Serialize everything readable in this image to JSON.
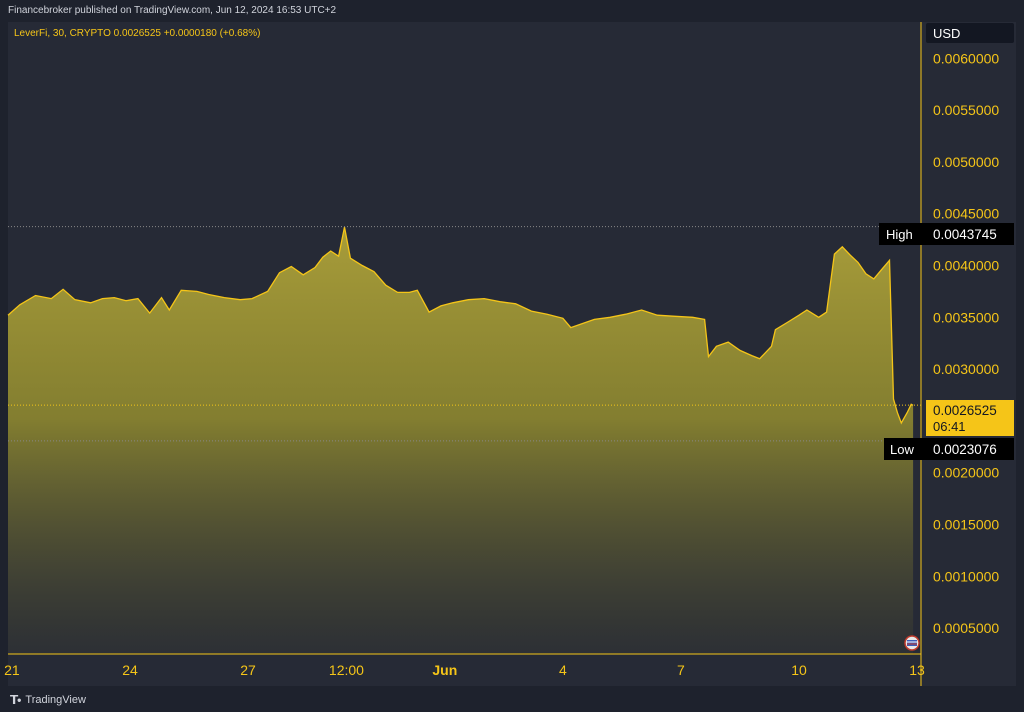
{
  "header": {
    "published": "Financebroker published on TradingView.com, Jun 12, 2024 16:53 UTC+2"
  },
  "legend": {
    "symbol_line": "LeverFi, 30, CRYPTO  0.0026525  +0.0000180 (+0.68%)"
  },
  "currency": "USD",
  "markers": {
    "high_label": "High",
    "high_value": "0.0043745",
    "low_label": "Low",
    "low_value": "0.0023076",
    "last_value": "0.0026525",
    "countdown": "06:41"
  },
  "footer": {
    "brand": "TradingView"
  },
  "colors": {
    "accent": "#f5c518",
    "line": "#f5c518",
    "background": "#262a36",
    "text": "#d1d4dc",
    "last_price_bg": "#f5c518"
  },
  "chart_data": {
    "type": "area",
    "ylim": [
      0.00025,
      0.00635
    ],
    "yticks": [
      {
        "v": 0.0005,
        "label": "0.0005000"
      },
      {
        "v": 0.001,
        "label": "0.0010000"
      },
      {
        "v": 0.0015,
        "label": "0.0015000"
      },
      {
        "v": 0.002,
        "label": "0.0020000"
      },
      {
        "v": 0.003,
        "label": "0.0030000"
      },
      {
        "v": 0.0035,
        "label": "0.0035000"
      },
      {
        "v": 0.004,
        "label": "0.0040000"
      },
      {
        "v": 0.0045,
        "label": "0.0045000"
      },
      {
        "v": 0.005,
        "label": "0.0050000"
      },
      {
        "v": 0.0055,
        "label": "0.0055000"
      },
      {
        "v": 0.006,
        "label": "0.0060000"
      }
    ],
    "xlim": [
      20.9,
      22.95
    ],
    "xticks": [
      {
        "t": 21,
        "label": "21"
      },
      {
        "t": 24,
        "label": "24"
      },
      {
        "t": 27,
        "label": "27"
      },
      {
        "t": 29.5,
        "label": "12:00"
      },
      {
        "t": 32,
        "label": "Jun"
      },
      {
        "t": 35,
        "label": "4"
      },
      {
        "t": 38,
        "label": "7"
      },
      {
        "t": 41,
        "label": "10"
      },
      {
        "t": 44,
        "label": "13"
      }
    ],
    "x_range_days": [
      20.9,
      44.1
    ],
    "high": 0.0043745,
    "low": 0.0023076,
    "last": 0.0026525,
    "points": [
      [
        20.9,
        0.00352
      ],
      [
        21.2,
        0.00362
      ],
      [
        21.6,
        0.00371
      ],
      [
        22.0,
        0.00368
      ],
      [
        22.3,
        0.00377
      ],
      [
        22.6,
        0.00367
      ],
      [
        23.0,
        0.00364
      ],
      [
        23.3,
        0.00368
      ],
      [
        23.6,
        0.00369
      ],
      [
        23.9,
        0.00366
      ],
      [
        24.2,
        0.00368
      ],
      [
        24.5,
        0.00354
      ],
      [
        24.8,
        0.00369
      ],
      [
        25.0,
        0.00357
      ],
      [
        25.3,
        0.00376
      ],
      [
        25.7,
        0.00375
      ],
      [
        26.0,
        0.00372
      ],
      [
        26.4,
        0.00369
      ],
      [
        26.8,
        0.00367
      ],
      [
        27.1,
        0.00368
      ],
      [
        27.5,
        0.00375
      ],
      [
        27.8,
        0.00393
      ],
      [
        28.1,
        0.00399
      ],
      [
        28.4,
        0.00391
      ],
      [
        28.7,
        0.00398
      ],
      [
        28.9,
        0.00408
      ],
      [
        29.1,
        0.00414
      ],
      [
        29.3,
        0.00409
      ],
      [
        29.45,
        0.00437
      ],
      [
        29.6,
        0.00407
      ],
      [
        29.9,
        0.004
      ],
      [
        30.2,
        0.00394
      ],
      [
        30.5,
        0.00381
      ],
      [
        30.8,
        0.00374
      ],
      [
        31.1,
        0.00374
      ],
      [
        31.3,
        0.00376
      ],
      [
        31.6,
        0.00355
      ],
      [
        31.9,
        0.00361
      ],
      [
        32.2,
        0.00364
      ],
      [
        32.6,
        0.00367
      ],
      [
        33.0,
        0.00368
      ],
      [
        33.4,
        0.00365
      ],
      [
        33.8,
        0.00363
      ],
      [
        34.2,
        0.00356
      ],
      [
        34.6,
        0.00353
      ],
      [
        35.0,
        0.00349
      ],
      [
        35.2,
        0.0034
      ],
      [
        35.5,
        0.00344
      ],
      [
        35.8,
        0.00348
      ],
      [
        36.2,
        0.0035
      ],
      [
        36.6,
        0.00353
      ],
      [
        37.0,
        0.00357
      ],
      [
        37.4,
        0.00352
      ],
      [
        37.8,
        0.00351
      ],
      [
        38.3,
        0.0035
      ],
      [
        38.6,
        0.00348
      ],
      [
        38.7,
        0.00312
      ],
      [
        38.9,
        0.00322
      ],
      [
        39.2,
        0.00326
      ],
      [
        39.5,
        0.00318
      ],
      [
        39.8,
        0.00313
      ],
      [
        40.0,
        0.0031
      ],
      [
        40.3,
        0.00322
      ],
      [
        40.4,
        0.00338
      ],
      [
        40.7,
        0.00345
      ],
      [
        41.0,
        0.00352
      ],
      [
        41.2,
        0.00357
      ],
      [
        41.5,
        0.0035
      ],
      [
        41.7,
        0.00355
      ],
      [
        41.9,
        0.00411
      ],
      [
        42.1,
        0.00418
      ],
      [
        42.3,
        0.0041
      ],
      [
        42.5,
        0.00403
      ],
      [
        42.7,
        0.00392
      ],
      [
        42.9,
        0.00387
      ],
      [
        43.1,
        0.00396
      ],
      [
        43.3,
        0.00405
      ],
      [
        43.4,
        0.00271
      ],
      [
        43.5,
        0.00258
      ],
      [
        43.6,
        0.00248
      ],
      [
        43.75,
        0.00258
      ],
      [
        43.85,
        0.00266
      ],
      [
        43.9,
        0.00265
      ]
    ]
  }
}
